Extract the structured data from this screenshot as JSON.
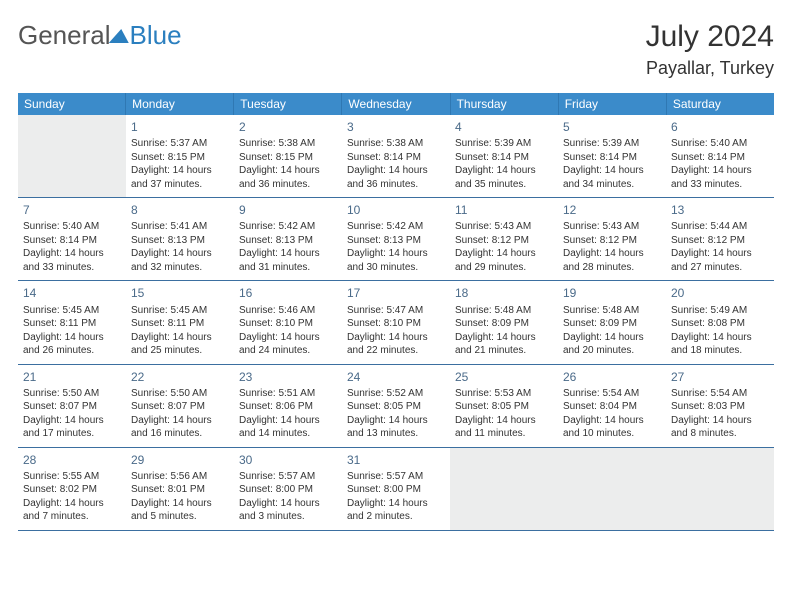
{
  "logo_general": "General",
  "logo_blue": "Blue",
  "title_month": "July 2024",
  "title_location": "Payallar, Turkey",
  "day_names": [
    "Sunday",
    "Monday",
    "Tuesday",
    "Wednesday",
    "Thursday",
    "Friday",
    "Saturday"
  ],
  "colors": {
    "header_bg": "#3b8bca",
    "header_text": "#ffffff",
    "blank_bg": "#eceded",
    "divider": "#3b6fa0",
    "daynum": "#4a6a89",
    "logo_accent": "#2b7fbf"
  },
  "weeks": [
    [
      {
        "blank": true
      },
      {
        "num": "1",
        "sr": "Sunrise: 5:37 AM",
        "ss": "Sunset: 8:15 PM",
        "dl1": "Daylight: 14 hours",
        "dl2": "and 37 minutes."
      },
      {
        "num": "2",
        "sr": "Sunrise: 5:38 AM",
        "ss": "Sunset: 8:15 PM",
        "dl1": "Daylight: 14 hours",
        "dl2": "and 36 minutes."
      },
      {
        "num": "3",
        "sr": "Sunrise: 5:38 AM",
        "ss": "Sunset: 8:14 PM",
        "dl1": "Daylight: 14 hours",
        "dl2": "and 36 minutes."
      },
      {
        "num": "4",
        "sr": "Sunrise: 5:39 AM",
        "ss": "Sunset: 8:14 PM",
        "dl1": "Daylight: 14 hours",
        "dl2": "and 35 minutes."
      },
      {
        "num": "5",
        "sr": "Sunrise: 5:39 AM",
        "ss": "Sunset: 8:14 PM",
        "dl1": "Daylight: 14 hours",
        "dl2": "and 34 minutes."
      },
      {
        "num": "6",
        "sr": "Sunrise: 5:40 AM",
        "ss": "Sunset: 8:14 PM",
        "dl1": "Daylight: 14 hours",
        "dl2": "and 33 minutes."
      }
    ],
    [
      {
        "num": "7",
        "sr": "Sunrise: 5:40 AM",
        "ss": "Sunset: 8:14 PM",
        "dl1": "Daylight: 14 hours",
        "dl2": "and 33 minutes."
      },
      {
        "num": "8",
        "sr": "Sunrise: 5:41 AM",
        "ss": "Sunset: 8:13 PM",
        "dl1": "Daylight: 14 hours",
        "dl2": "and 32 minutes."
      },
      {
        "num": "9",
        "sr": "Sunrise: 5:42 AM",
        "ss": "Sunset: 8:13 PM",
        "dl1": "Daylight: 14 hours",
        "dl2": "and 31 minutes."
      },
      {
        "num": "10",
        "sr": "Sunrise: 5:42 AM",
        "ss": "Sunset: 8:13 PM",
        "dl1": "Daylight: 14 hours",
        "dl2": "and 30 minutes."
      },
      {
        "num": "11",
        "sr": "Sunrise: 5:43 AM",
        "ss": "Sunset: 8:12 PM",
        "dl1": "Daylight: 14 hours",
        "dl2": "and 29 minutes."
      },
      {
        "num": "12",
        "sr": "Sunrise: 5:43 AM",
        "ss": "Sunset: 8:12 PM",
        "dl1": "Daylight: 14 hours",
        "dl2": "and 28 minutes."
      },
      {
        "num": "13",
        "sr": "Sunrise: 5:44 AM",
        "ss": "Sunset: 8:12 PM",
        "dl1": "Daylight: 14 hours",
        "dl2": "and 27 minutes."
      }
    ],
    [
      {
        "num": "14",
        "sr": "Sunrise: 5:45 AM",
        "ss": "Sunset: 8:11 PM",
        "dl1": "Daylight: 14 hours",
        "dl2": "and 26 minutes."
      },
      {
        "num": "15",
        "sr": "Sunrise: 5:45 AM",
        "ss": "Sunset: 8:11 PM",
        "dl1": "Daylight: 14 hours",
        "dl2": "and 25 minutes."
      },
      {
        "num": "16",
        "sr": "Sunrise: 5:46 AM",
        "ss": "Sunset: 8:10 PM",
        "dl1": "Daylight: 14 hours",
        "dl2": "and 24 minutes."
      },
      {
        "num": "17",
        "sr": "Sunrise: 5:47 AM",
        "ss": "Sunset: 8:10 PM",
        "dl1": "Daylight: 14 hours",
        "dl2": "and 22 minutes."
      },
      {
        "num": "18",
        "sr": "Sunrise: 5:48 AM",
        "ss": "Sunset: 8:09 PM",
        "dl1": "Daylight: 14 hours",
        "dl2": "and 21 minutes."
      },
      {
        "num": "19",
        "sr": "Sunrise: 5:48 AM",
        "ss": "Sunset: 8:09 PM",
        "dl1": "Daylight: 14 hours",
        "dl2": "and 20 minutes."
      },
      {
        "num": "20",
        "sr": "Sunrise: 5:49 AM",
        "ss": "Sunset: 8:08 PM",
        "dl1": "Daylight: 14 hours",
        "dl2": "and 18 minutes."
      }
    ],
    [
      {
        "num": "21",
        "sr": "Sunrise: 5:50 AM",
        "ss": "Sunset: 8:07 PM",
        "dl1": "Daylight: 14 hours",
        "dl2": "and 17 minutes."
      },
      {
        "num": "22",
        "sr": "Sunrise: 5:50 AM",
        "ss": "Sunset: 8:07 PM",
        "dl1": "Daylight: 14 hours",
        "dl2": "and 16 minutes."
      },
      {
        "num": "23",
        "sr": "Sunrise: 5:51 AM",
        "ss": "Sunset: 8:06 PM",
        "dl1": "Daylight: 14 hours",
        "dl2": "and 14 minutes."
      },
      {
        "num": "24",
        "sr": "Sunrise: 5:52 AM",
        "ss": "Sunset: 8:05 PM",
        "dl1": "Daylight: 14 hours",
        "dl2": "and 13 minutes."
      },
      {
        "num": "25",
        "sr": "Sunrise: 5:53 AM",
        "ss": "Sunset: 8:05 PM",
        "dl1": "Daylight: 14 hours",
        "dl2": "and 11 minutes."
      },
      {
        "num": "26",
        "sr": "Sunrise: 5:54 AM",
        "ss": "Sunset: 8:04 PM",
        "dl1": "Daylight: 14 hours",
        "dl2": "and 10 minutes."
      },
      {
        "num": "27",
        "sr": "Sunrise: 5:54 AM",
        "ss": "Sunset: 8:03 PM",
        "dl1": "Daylight: 14 hours",
        "dl2": "and 8 minutes."
      }
    ],
    [
      {
        "num": "28",
        "sr": "Sunrise: 5:55 AM",
        "ss": "Sunset: 8:02 PM",
        "dl1": "Daylight: 14 hours",
        "dl2": "and 7 minutes."
      },
      {
        "num": "29",
        "sr": "Sunrise: 5:56 AM",
        "ss": "Sunset: 8:01 PM",
        "dl1": "Daylight: 14 hours",
        "dl2": "and 5 minutes."
      },
      {
        "num": "30",
        "sr": "Sunrise: 5:57 AM",
        "ss": "Sunset: 8:00 PM",
        "dl1": "Daylight: 14 hours",
        "dl2": "and 3 minutes."
      },
      {
        "num": "31",
        "sr": "Sunrise: 5:57 AM",
        "ss": "Sunset: 8:00 PM",
        "dl1": "Daylight: 14 hours",
        "dl2": "and 2 minutes."
      },
      {
        "blank": true
      },
      {
        "blank": true
      },
      {
        "blank": true
      }
    ]
  ]
}
